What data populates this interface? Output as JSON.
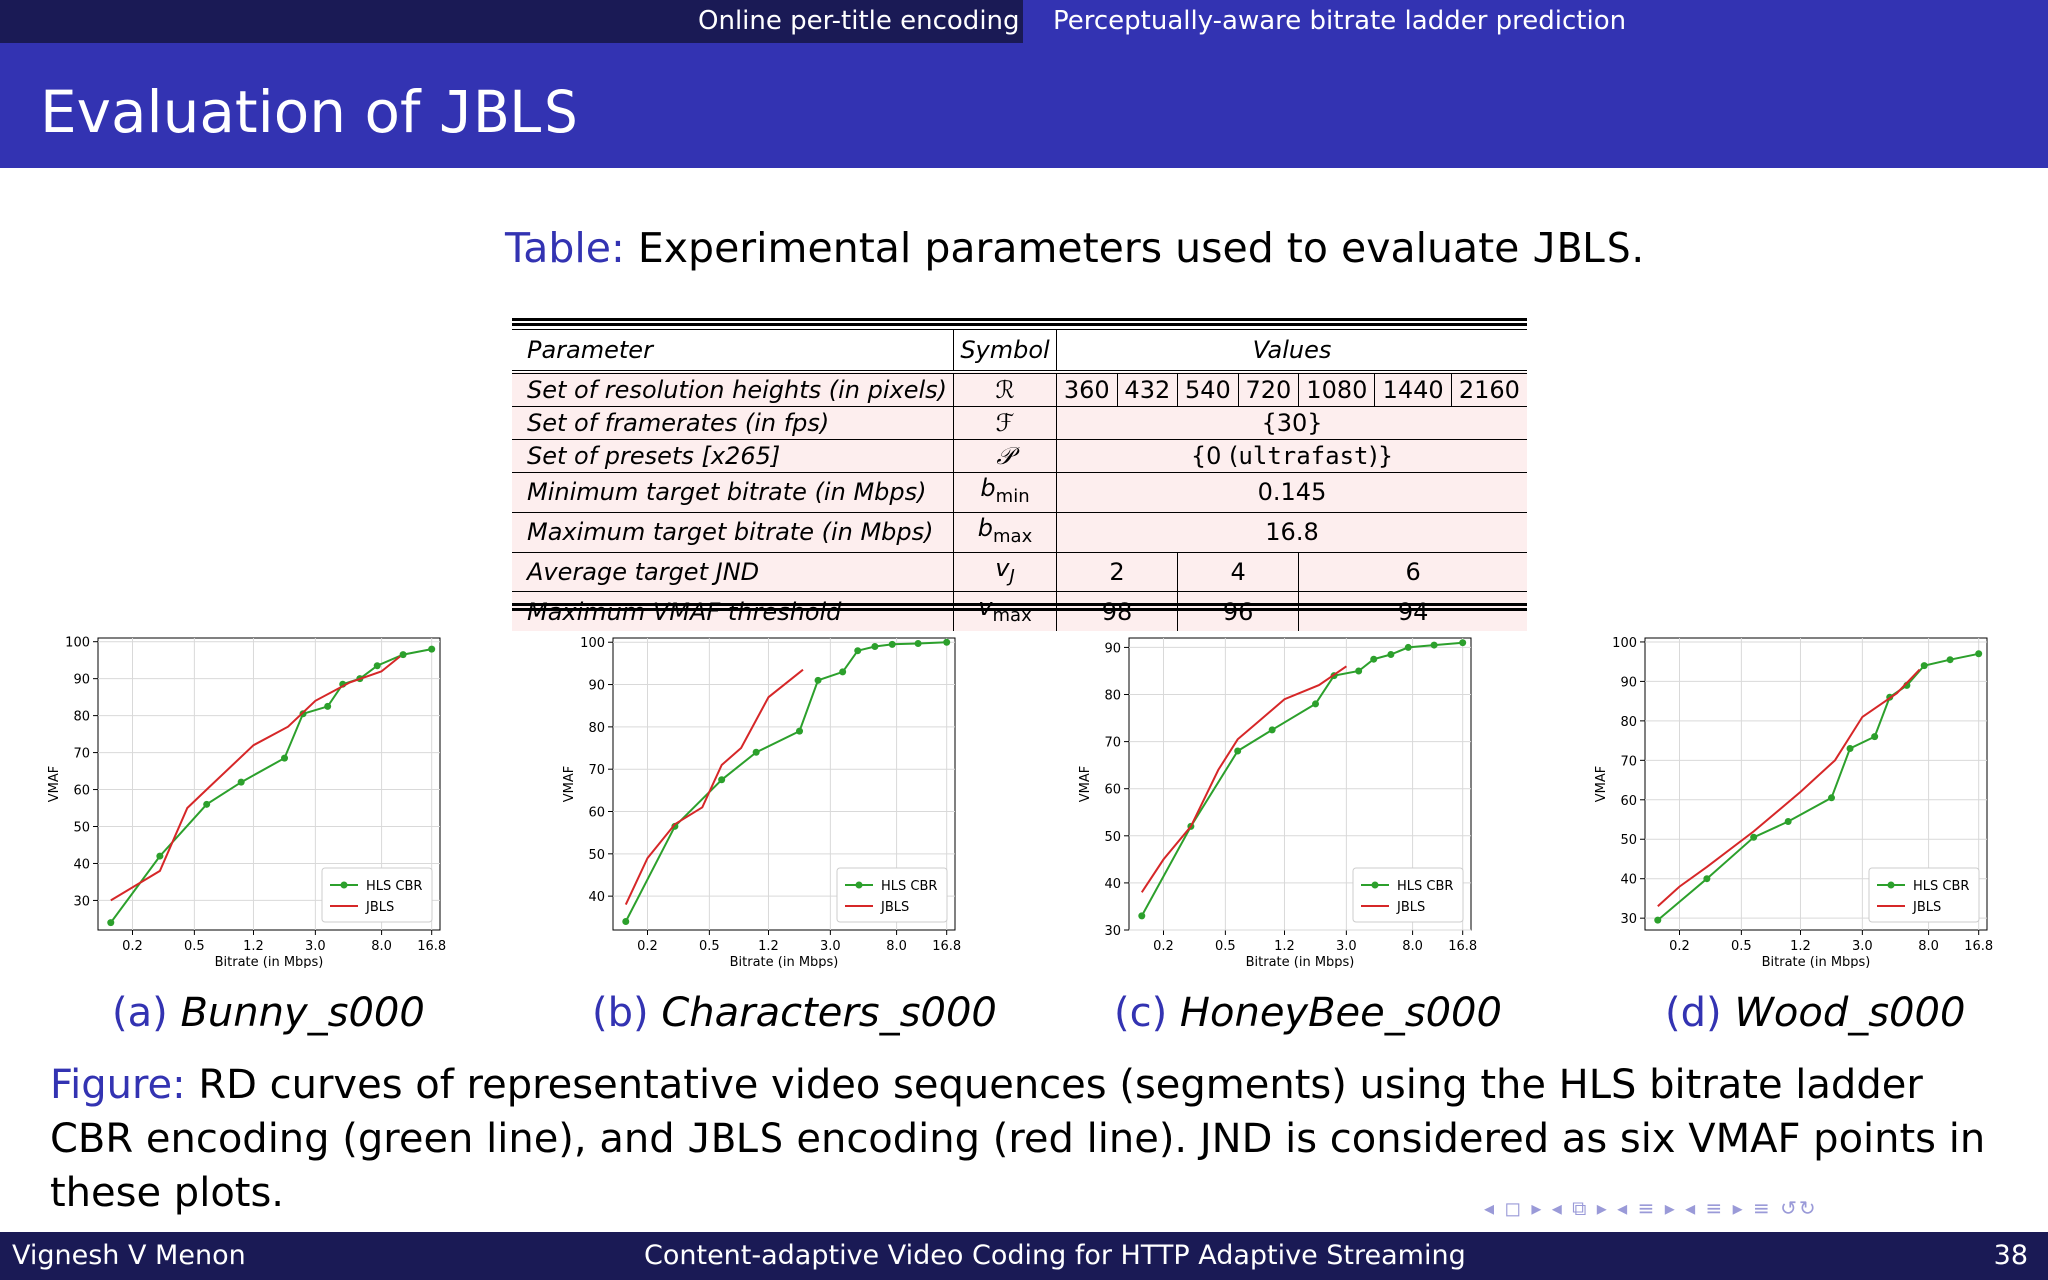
{
  "nav": {
    "left": "Online per-title encoding",
    "right": "Perceptually-aware bitrate ladder prediction"
  },
  "slide_title": {
    "prefix": "Evaluation of ",
    "name": "JBLS"
  },
  "table_caption": {
    "label": "Table:",
    "text": " Experimental parameters used to evaluate ",
    "name": "JBLS",
    "end": "."
  },
  "table": {
    "headers": [
      "Parameter",
      "Symbol",
      "Values"
    ],
    "rows": [
      {
        "name": "Set of resolution heights (in pixels)",
        "symbol": "ℛ",
        "values": [
          "360",
          "432",
          "540",
          "720",
          "1080",
          "1440",
          "2160"
        ]
      },
      {
        "name": "Set of framerates (in fps)",
        "symbol": "ℱ",
        "value": "{30}"
      },
      {
        "name": "Set of presets [x265]",
        "symbol": "𝒫",
        "value_pre": "{0 (",
        "value_mono": "ultrafast",
        "value_post": ")}"
      },
      {
        "name": "Minimum target bitrate (in Mbps)",
        "symbol": "b",
        "sub": "min",
        "value": "0.145"
      },
      {
        "name": "Maximum target bitrate (in Mbps)",
        "symbol": "b",
        "sub": "max",
        "value": "16.8"
      },
      {
        "name": "Average target JND",
        "symbol": "v",
        "sub": "J",
        "values": [
          "2",
          "4",
          "6"
        ]
      },
      {
        "name": "Maximum VMAF threshold",
        "symbol": "v",
        "sub": "max",
        "values": [
          "98",
          "96",
          "94"
        ]
      }
    ]
  },
  "chart_data": [
    {
      "type": "line",
      "xlabel": "Bitrate (in Mbps)",
      "ylabel": "VMAF",
      "x_scale": "log",
      "xticks": [
        "0.2",
        "0.5",
        "1.2",
        "3.0",
        "8.0",
        "16.8"
      ],
      "ylim": [
        22,
        101
      ],
      "yticks": [
        30,
        40,
        50,
        60,
        70,
        80,
        90,
        100
      ],
      "legend": "lower-right",
      "grid": true,
      "series": [
        {
          "name": "HLS CBR",
          "color": "#2ca02c",
          "marker": true,
          "x": [
            0.145,
            0.3,
            0.6,
            1.0,
            1.9,
            2.5,
            3.6,
            4.5,
            5.8,
            7.5,
            11,
            16.8
          ],
          "y": [
            24,
            42,
            56,
            62,
            68.5,
            80.5,
            82.5,
            88.5,
            90,
            93.5,
            96.5,
            98
          ]
        },
        {
          "name": "JBLS",
          "color": "#d62728",
          "marker": false,
          "x": [
            0.145,
            0.3,
            0.45,
            0.6,
            1.2,
            2.0,
            3.0,
            5.0,
            8.0,
            10.5
          ],
          "y": [
            30,
            38,
            55,
            60,
            72,
            77,
            84,
            89,
            92,
            96
          ]
        }
      ]
    },
    {
      "type": "line",
      "xlabel": "Bitrate (in Mbps)",
      "ylabel": "VMAF",
      "x_scale": "log",
      "xticks": [
        "0.2",
        "0.5",
        "1.2",
        "3.0",
        "8.0",
        "16.8"
      ],
      "ylim": [
        32,
        101
      ],
      "yticks": [
        40,
        50,
        60,
        70,
        80,
        90,
        100
      ],
      "legend": "lower-right",
      "grid": true,
      "series": [
        {
          "name": "HLS CBR",
          "color": "#2ca02c",
          "marker": true,
          "x": [
            0.145,
            0.3,
            0.6,
            1.0,
            1.9,
            2.5,
            3.6,
            4.5,
            5.8,
            7.5,
            11,
            16.8
          ],
          "y": [
            34,
            56.5,
            67.5,
            74,
            79,
            91,
            93,
            98,
            99,
            99.5,
            99.7,
            100
          ]
        },
        {
          "name": "JBLS",
          "color": "#d62728",
          "marker": false,
          "x": [
            0.145,
            0.2,
            0.3,
            0.45,
            0.6,
            0.8,
            1.2,
            2.0
          ],
          "y": [
            38,
            49,
            57,
            61,
            71,
            75,
            87,
            93.5
          ]
        }
      ]
    },
    {
      "type": "line",
      "xlabel": "Bitrate (in Mbps)",
      "ylabel": "VMAF",
      "x_scale": "log",
      "xticks": [
        "0.2",
        "0.5",
        "1.2",
        "3.0",
        "8.0",
        "16.8"
      ],
      "ylim": [
        30,
        92
      ],
      "yticks": [
        30,
        40,
        50,
        60,
        70,
        80,
        90
      ],
      "legend": "lower-right",
      "grid": true,
      "series": [
        {
          "name": "HLS CBR",
          "color": "#2ca02c",
          "marker": true,
          "x": [
            0.145,
            0.3,
            0.6,
            1.0,
            1.9,
            2.5,
            3.6,
            4.5,
            5.8,
            7.5,
            11,
            16.8
          ],
          "y": [
            33,
            52,
            68,
            72.5,
            78,
            84,
            85,
            87.5,
            88.5,
            90,
            90.5,
            91
          ]
        },
        {
          "name": "JBLS",
          "color": "#d62728",
          "marker": false,
          "x": [
            0.145,
            0.2,
            0.3,
            0.45,
            0.6,
            0.8,
            1.2,
            2.0,
            3.0
          ],
          "y": [
            38,
            45,
            52,
            64,
            70.5,
            74,
            79,
            82,
            86
          ]
        }
      ]
    },
    {
      "type": "line",
      "xlabel": "Bitrate (in Mbps)",
      "ylabel": "VMAF",
      "x_scale": "log",
      "xticks": [
        "0.2",
        "0.5",
        "1.2",
        "3.0",
        "8.0",
        "16.8"
      ],
      "ylim": [
        27,
        101
      ],
      "yticks": [
        30,
        40,
        50,
        60,
        70,
        80,
        90,
        100
      ],
      "legend": "lower-right",
      "grid": true,
      "series": [
        {
          "name": "HLS CBR",
          "color": "#2ca02c",
          "marker": true,
          "x": [
            0.145,
            0.3,
            0.6,
            1.0,
            1.9,
            2.5,
            3.6,
            4.5,
            5.8,
            7.5,
            11,
            16.8
          ],
          "y": [
            29.5,
            40,
            50.5,
            54.5,
            60.5,
            73,
            76,
            86,
            89,
            94,
            95.5,
            97
          ]
        },
        {
          "name": "JBLS",
          "color": "#d62728",
          "marker": false,
          "x": [
            0.145,
            0.2,
            0.3,
            0.6,
            1.2,
            2.0,
            3.0,
            5.0,
            7.0
          ],
          "y": [
            33,
            38,
            43,
            52,
            62,
            70,
            81,
            87,
            93
          ]
        }
      ]
    }
  ],
  "subcaptions": [
    {
      "label": "(a)",
      "name": "Bunny_s000"
    },
    {
      "label": "(b)",
      "name": "Characters_s000"
    },
    {
      "label": "(c)",
      "name": "HoneyBee_s000"
    },
    {
      "label": "(d)",
      "name": "Wood_s000"
    }
  ],
  "figure_caption": {
    "label": "Figure:",
    "text1": " RD curves of representative video sequences (segments) using the HLS bitrate ladder CBR encoding (green line), and ",
    "name": "JBLS",
    "text2": " encoding (red line). JND is considered as six VMAF points in these plots."
  },
  "beamer_nav": "◂ ◻ ▸ ◂ ⧉ ▸ ◂ ≡ ▸ ◂ ≡ ▸   ≡   ↺↻",
  "footer": {
    "author": "Vignesh V Menon",
    "talk_title": "Content-adaptive Video Coding for HTTP Adaptive Streaming",
    "page": "38"
  }
}
